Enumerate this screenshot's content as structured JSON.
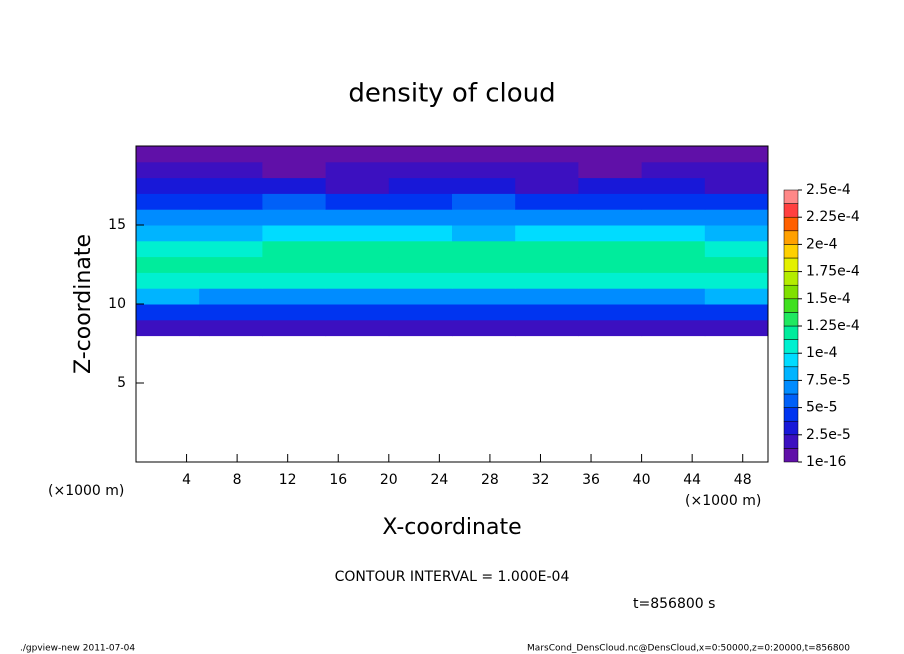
{
  "chart_data": {
    "type": "heatmap",
    "title": "density of cloud",
    "xlabel": "X-coordinate",
    "ylabel": "Z-coordinate",
    "xunit": "(×1000 m)",
    "yunit": "(×1000 m)",
    "xlim": [
      0,
      50
    ],
    "xticks": [
      4,
      8,
      12,
      16,
      20,
      24,
      28,
      32,
      36,
      40,
      44,
      48
    ],
    "ylim": [
      0,
      20
    ],
    "yticks": [
      5,
      10,
      15
    ],
    "xbins": [
      0,
      5,
      10,
      15,
      20,
      25,
      30,
      35,
      40,
      45,
      50
    ],
    "ybins": [
      8,
      9,
      10,
      11,
      12,
      13,
      14,
      15,
      16,
      17,
      18,
      19,
      20
    ],
    "z": [
      [
        1.4e-05,
        1.6e-05,
        1.5e-05,
        1.5e-05,
        1.6e-05,
        1.4e-05,
        1.5e-05,
        1.6e-05,
        1.5e-05,
        1.7e-05
      ],
      [
        4.5e-05,
        4e-05,
        3.8e-05,
        4.2e-05,
        4e-05,
        3.9e-05,
        4.1e-05,
        4e-05,
        4.2e-05,
        4.6e-05
      ],
      [
        8e-05,
        7.2e-05,
        7e-05,
        7.4e-05,
        7.3e-05,
        7.1e-05,
        7e-05,
        7.2e-05,
        7.5e-05,
        8.2e-05
      ],
      [
        0.000105,
        0.000102,
        0.000106,
        0.000108,
        0.000105,
        0.000104,
        0.000106,
        0.000105,
        0.000107,
        0.000106
      ],
      [
        0.000115,
        0.000118,
        0.00012,
        0.000122,
        0.00012,
        0.000119,
        0.000121,
        0.00012,
        0.00012,
        0.000116
      ],
      [
        0.000105,
        0.00011,
        0.000114,
        0.000115,
        0.000116,
        0.000113,
        0.000114,
        0.000115,
        0.000114,
        0.000108
      ],
      [
        8e-05,
        8.5e-05,
        9.5e-05,
        9.8e-05,
        9.2e-05,
        8.6e-05,
        8.8e-05,
        9.4e-05,
        9.2e-05,
        8.2e-05
      ],
      [
        6.5e-05,
        6.8e-05,
        7.5e-05,
        7.2e-05,
        6.8e-05,
        6.3e-05,
        6.6e-05,
        7.3e-05,
        7e-05,
        6.4e-05
      ],
      [
        5e-05,
        4.8e-05,
        5.2e-05,
        4.6e-05,
        4.4e-05,
        5.5e-05,
        4.7e-05,
        4.9e-05,
        4.8e-05,
        4.5e-05
      ],
      [
        3e-05,
        2.6e-05,
        2.8e-05,
        2.4e-05,
        2.6e-05,
        3.2e-05,
        2.5e-05,
        2.7e-05,
        2.6e-05,
        2.5e-05
      ],
      [
        1.6e-05,
        1.4e-05,
        1.2e-05,
        1.3e-05,
        1.4e-05,
        1.8e-05,
        1.3e-05,
        1.2e-05,
        1.3e-05,
        1.4e-05
      ],
      [
        6e-06,
        5e-06,
        4e-06,
        5e-06,
        6e-06,
        8e-06,
        7e-06,
        5e-06,
        4e-06,
        5e-06
      ]
    ],
    "colorbar": {
      "ticks": [
        {
          "value": 1e-16,
          "label": "1e-16"
        },
        {
          "value": 2.5e-05,
          "label": "2.5e-5"
        },
        {
          "value": 5e-05,
          "label": "5e-5"
        },
        {
          "value": 7.5e-05,
          "label": "7.5e-5"
        },
        {
          "value": 0.0001,
          "label": "1e-4"
        },
        {
          "value": 0.000125,
          "label": "1.25e-4"
        },
        {
          "value": 0.00015,
          "label": "1.5e-4"
        },
        {
          "value": 0.000175,
          "label": "1.75e-4"
        },
        {
          "value": 0.0002,
          "label": "2e-4"
        },
        {
          "value": 0.000225,
          "label": "2.25e-4"
        },
        {
          "value": 0.00025,
          "label": "2.5e-4"
        }
      ],
      "colors": [
        "#6010a8",
        "#3c10c0",
        "#1818d8",
        "#0034f0",
        "#0060f8",
        "#008cff",
        "#00b4ff",
        "#00dcff",
        "#00f0d0",
        "#00ec9c",
        "#20e860",
        "#40e020",
        "#80e000",
        "#b4ec00",
        "#e4f000",
        "#ffd000",
        "#ffa000",
        "#ff6000",
        "#ff4040",
        "#ff8888"
      ]
    },
    "contour_note": "CONTOUR INTERVAL = 1.000E-04",
    "time_note": "t=856800 s",
    "footer_left": "./gpview-new  2011-07-04",
    "footer_right": "MarsCond_DensCloud.nc@DensCloud,x=0:50000,z=0:20000,t=856800"
  }
}
